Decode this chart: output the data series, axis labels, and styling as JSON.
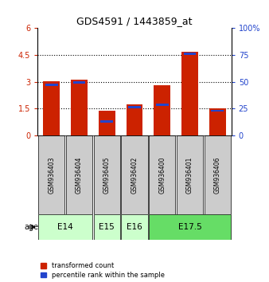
{
  "title": "GDS4591 / 1443859_at",
  "samples": [
    "GSM936403",
    "GSM936404",
    "GSM936405",
    "GSM936402",
    "GSM936400",
    "GSM936401",
    "GSM936406"
  ],
  "red_values": [
    3.05,
    3.1,
    1.4,
    1.75,
    2.8,
    4.7,
    1.5
  ],
  "blue_values": [
    2.82,
    2.98,
    0.78,
    1.6,
    1.72,
    4.58,
    1.38
  ],
  "left_ylim": [
    0,
    6
  ],
  "left_yticks": [
    0,
    1.5,
    3.0,
    4.5,
    6.0
  ],
  "left_ytick_labels": [
    "0",
    "1.5",
    "3",
    "4.5",
    "6"
  ],
  "right_ytick_labels": [
    "0",
    "25",
    "50",
    "75",
    "100%"
  ],
  "age_groups": [
    {
      "label": "E14",
      "start": 0,
      "end": 2,
      "color": "#ccffcc"
    },
    {
      "label": "E15",
      "start": 2,
      "end": 3,
      "color": "#ccffcc"
    },
    {
      "label": "E16",
      "start": 3,
      "end": 4,
      "color": "#ccffcc"
    },
    {
      "label": "E17.5",
      "start": 4,
      "end": 7,
      "color": "#66dd66"
    }
  ],
  "bar_color_red": "#cc2200",
  "bar_color_blue": "#2244cc",
  "bar_width": 0.6,
  "sample_box_color": "#cccccc",
  "legend_red_label": "transformed count",
  "legend_blue_label": "percentile rank within the sample",
  "title_fontsize": 9,
  "tick_fontsize": 7,
  "age_label": "age"
}
